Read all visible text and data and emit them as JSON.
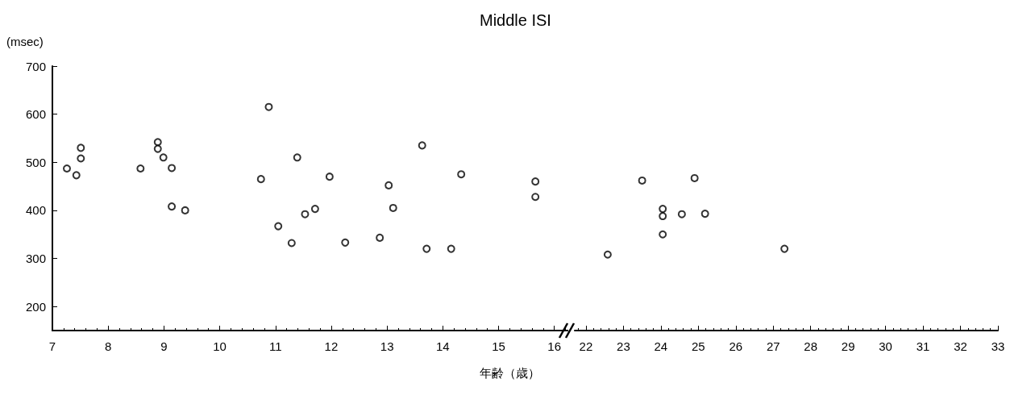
{
  "chart_data": [
    {
      "type": "scatter",
      "title": "Middle ISI",
      "xlabel": "年齢（歳）",
      "ylabel": "(msec)",
      "xlim": [
        7,
        16.25
      ],
      "xticks": [
        7,
        8,
        9,
        10,
        11,
        12,
        13,
        14,
        15,
        16
      ],
      "ylim": [
        150,
        700
      ],
      "yticks": [
        200,
        300,
        400,
        500,
        600,
        700
      ],
      "grid": false,
      "marker": "circle",
      "series": [
        {
          "color": "#000000",
          "x": [
            7.26,
            7.43,
            7.51,
            7.51,
            8.58,
            8.89,
            8.89,
            8.99,
            9.14,
            9.14,
            9.38,
            10.74,
            10.88,
            11.05,
            11.29,
            11.39,
            11.53,
            11.71,
            11.97,
            12.25,
            12.87,
            13.03,
            13.11,
            13.63,
            13.71,
            14.15,
            14.33,
            15.66,
            15.66
          ],
          "values": [
            487,
            473,
            530,
            508,
            487,
            542,
            528,
            510,
            488,
            408,
            400,
            465,
            615,
            367,
            332,
            510,
            392,
            403,
            470,
            333,
            343,
            452,
            405,
            535,
            320,
            320,
            475,
            460,
            428
          ]
        }
      ]
    },
    {
      "type": "scatter",
      "xlim": [
        21.7,
        33
      ],
      "xticks": [
        22,
        23,
        24,
        25,
        26,
        27,
        28,
        29,
        30,
        31,
        32,
        33
      ],
      "ylim": [
        150,
        700
      ],
      "tick_labels": "x",
      "grid": false,
      "marker": "circle",
      "series": [
        {
          "color": "#000000",
          "x": [
            22.58,
            23.5,
            24.05,
            24.05,
            24.05,
            24.56,
            24.9,
            25.18,
            27.3
          ],
          "values": [
            308,
            462,
            403,
            388,
            350,
            392,
            467,
            393,
            320
          ]
        }
      ]
    }
  ]
}
